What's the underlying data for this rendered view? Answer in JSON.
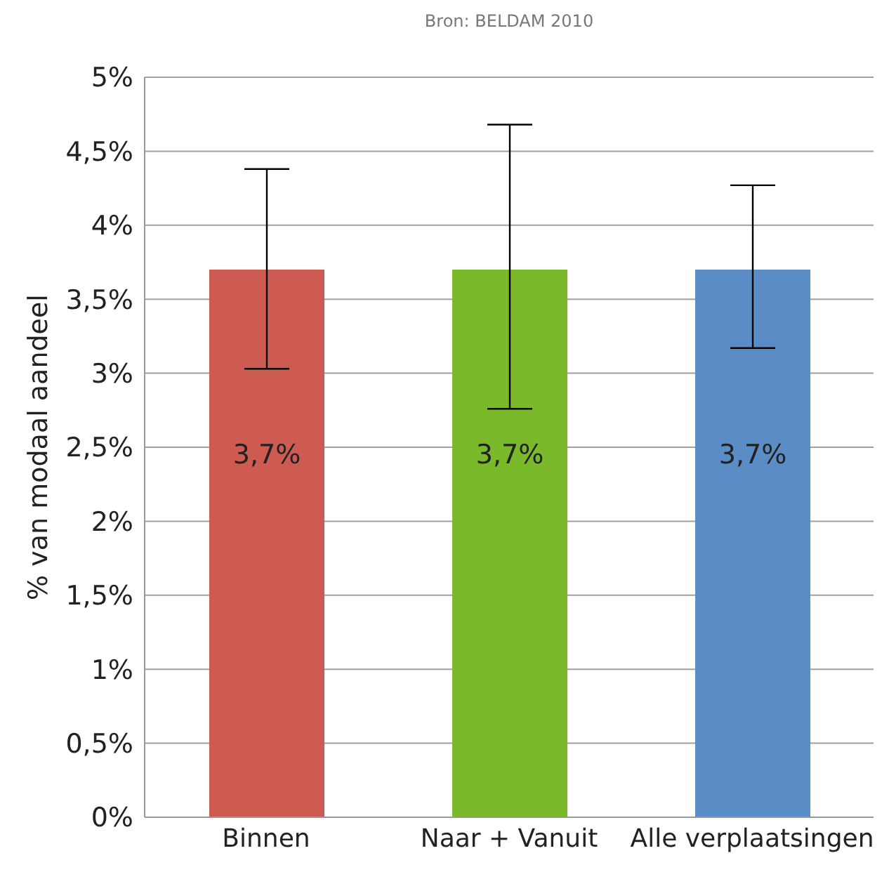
{
  "chart_data": {
    "type": "bar",
    "annotations": [
      "Bron: BELDAM 2010"
    ],
    "ylabel": "% van modaal aandeel",
    "categories": [
      "Binnen",
      "Naar + Vanuit",
      "Alle verplaatsingen"
    ],
    "values": [
      3.7,
      3.7,
      3.7
    ],
    "colors": [
      "#cd5b52",
      "#7aba2a",
      "#5a8dc5"
    ],
    "errors": [
      [
        3.03,
        4.38
      ],
      [
        2.76,
        4.68
      ],
      [
        3.17,
        4.27
      ]
    ],
    "value_labels": [
      "3,7%",
      "3,7%",
      "3,7%"
    ],
    "ylim": [
      0,
      5
    ],
    "yticks": [
      {
        "value": 0,
        "label": "0%"
      },
      {
        "value": 0.5,
        "label": "0,5%"
      },
      {
        "value": 1,
        "label": "1%"
      },
      {
        "value": 1.5,
        "label": "1,5%"
      },
      {
        "value": 2,
        "label": "2%"
      },
      {
        "value": 2.5,
        "label": "2,5%"
      },
      {
        "value": 3,
        "label": "3%"
      },
      {
        "value": 3.5,
        "label": "3,5%"
      },
      {
        "value": 4,
        "label": "4%"
      },
      {
        "value": 4.5,
        "label": "4,5%"
      },
      {
        "value": 5,
        "label": "5%"
      }
    ],
    "grid": "y"
  }
}
